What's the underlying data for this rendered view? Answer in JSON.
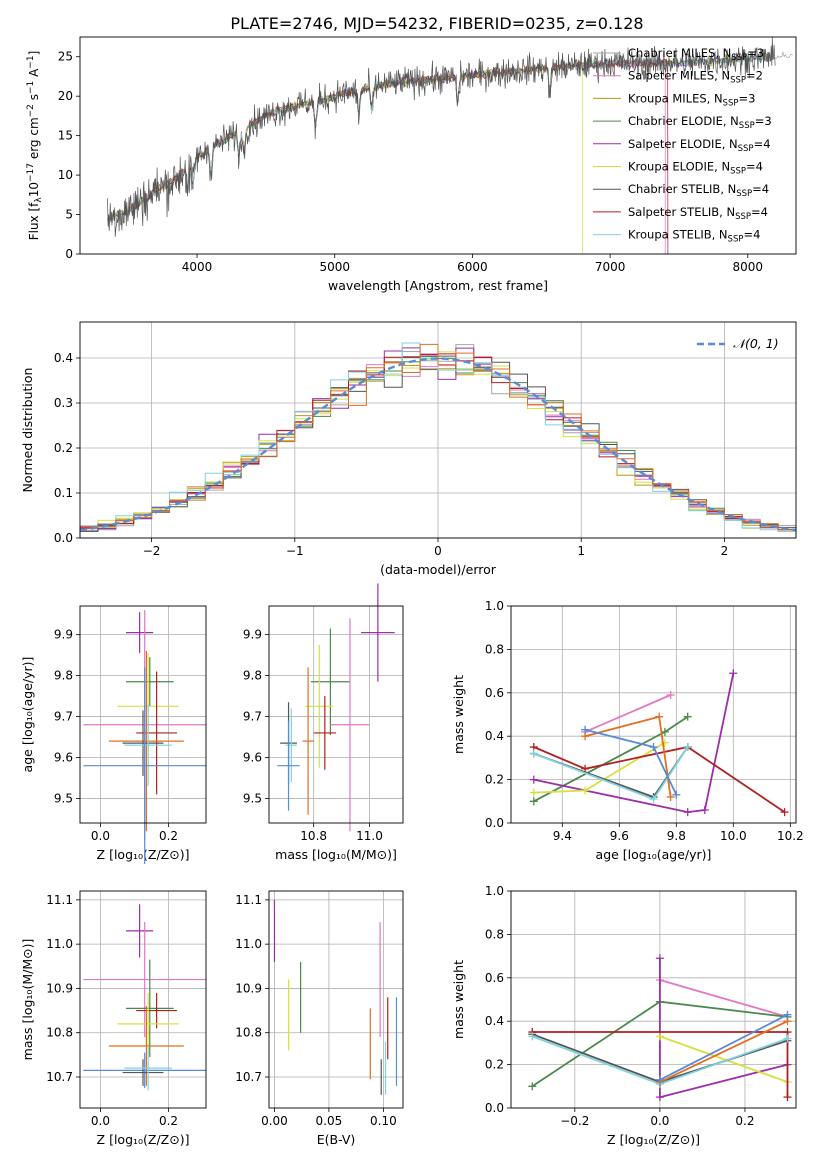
{
  "figure": {
    "title": "PLATE=2746, MJD=54232, FIBERID=0235, z=0.128"
  },
  "colors": {
    "series": [
      "#a6a6a6",
      "#e377c2",
      "#bc9b10",
      "#4a8a4a",
      "#9b2fa8",
      "#d8e040",
      "#555555",
      "#b21f1f",
      "#7fd3e0"
    ],
    "normal_curve": "#5b8ad6",
    "blue_ssp": "#5b8ad6",
    "orange_ssp": "#e07020",
    "grid": "#b0b0b0"
  },
  "legend_entries": [
    {
      "main": "Chabrier MILES, N",
      "sub": "SSP",
      "tail": "=3"
    },
    {
      "main": "Salpeter MILES, N",
      "sub": "SSP",
      "tail": "=2"
    },
    {
      "main": "Kroupa MILES, N",
      "sub": "SSP",
      "tail": "=3"
    },
    {
      "main": "Chabrier ELODIE, N",
      "sub": "SSP",
      "tail": "=3"
    },
    {
      "main": "Salpeter ELODIE, N",
      "sub": "SSP",
      "tail": "=4"
    },
    {
      "main": "Kroupa ELODIE, N",
      "sub": "SSP",
      "tail": "=4"
    },
    {
      "main": "Chabrier STELIB, N",
      "sub": "SSP",
      "tail": "=4"
    },
    {
      "main": "Salpeter STELIB, N",
      "sub": "SSP",
      "tail": "=4"
    },
    {
      "main": "Kroupa STELIB, N",
      "sub": "SSP",
      "tail": "=4"
    }
  ],
  "chart_data": [
    {
      "id": "spectrum",
      "type": "line",
      "title": "PLATE=2746, MJD=54232, FIBERID=0235, z=0.128",
      "xlabel": "wavelength [Angstrom, rest frame]",
      "ylabel_parts": [
        "Flux [f",
        "λ",
        "10",
        "−17",
        " erg cm",
        "−2",
        " s",
        "−1",
        " A",
        "−1",
        "]"
      ],
      "xlim": [
        3150,
        8350
      ],
      "ylim": [
        0,
        27.5
      ],
      "xticks": [
        4000,
        5000,
        6000,
        7000,
        8000
      ],
      "yticks": [
        0,
        5,
        10,
        15,
        20,
        25
      ],
      "grid": false,
      "legend_position": "upper-right",
      "continuum": [
        [
          3350,
          4.5
        ],
        [
          3500,
          5.5
        ],
        [
          3700,
          8.0
        ],
        [
          3850,
          9.5
        ],
        [
          3950,
          11.5
        ],
        [
          4100,
          13.5
        ],
        [
          4300,
          15.5
        ],
        [
          4500,
          17.5
        ],
        [
          4700,
          18.8
        ],
        [
          4900,
          19.5
        ],
        [
          5100,
          20.5
        ],
        [
          5300,
          21.3
        ],
        [
          5500,
          21.8
        ],
        [
          5800,
          22.3
        ],
        [
          6100,
          22.8
        ],
        [
          6500,
          23.5
        ],
        [
          7000,
          24.2
        ],
        [
          7500,
          24.2
        ],
        [
          8000,
          24.8
        ],
        [
          8200,
          25.0
        ]
      ],
      "edge_dropouts": [
        {
          "series": 5,
          "x": 6800
        },
        {
          "series": 7,
          "x": 7420
        },
        {
          "series": 1,
          "x": 7400
        }
      ]
    },
    {
      "id": "residuals",
      "type": "histogram",
      "xlabel": "(data-model)/error",
      "ylabel": "Normed distribution",
      "xlim": [
        -2.5,
        2.5
      ],
      "ylim": [
        0,
        0.48
      ],
      "xticks": [
        -2,
        -1,
        0,
        1,
        2
      ],
      "yticks": [
        0.0,
        0.1,
        0.2,
        0.3,
        0.4
      ],
      "grid": true,
      "legend_entry": "𝒩(0, 1)",
      "legend_position": "upper-right",
      "bin_width": 0.125
    },
    {
      "id": "z-vs-age",
      "type": "errorbar",
      "xlabel": "Z [log₁₀(Z/Z⊙)]",
      "ylabel": "age  [log₁₀(age/yr)]",
      "xlim": [
        -0.06,
        0.31
      ],
      "ylim": [
        9.44,
        9.97
      ],
      "xticks": [
        0.0,
        0.2
      ],
      "yticks": [
        9.5,
        9.6,
        9.7,
        9.8,
        9.9
      ],
      "grid": true,
      "points": [
        {
          "series": 4,
          "x": 0.115,
          "xerr": 0.04,
          "y": 9.905,
          "yerr": 0.05
        },
        {
          "series": 3,
          "x": 0.145,
          "xerr": 0.07,
          "y": 9.785,
          "yerr": 0.06
        },
        {
          "series": 5,
          "x": 0.14,
          "xerr": 0.09,
          "y": 9.725,
          "yerr": 0.13
        },
        {
          "series": 1,
          "x": 0.13,
          "xerr": 0.18,
          "y": 9.68,
          "yerr": 0.28
        },
        {
          "series": 7,
          "x": 0.165,
          "xerr": 0.06,
          "y": 9.66,
          "yerr": 0.15
        },
        {
          "series": 9,
          "x": 0.135,
          "xerr": 0.11,
          "y": 9.64,
          "yerr": 0.22
        },
        {
          "series": 6,
          "x": 0.125,
          "xerr": 0.06,
          "y": 9.635,
          "yerr": 0.08
        },
        {
          "series": 8,
          "x": 0.14,
          "xerr": 0.07,
          "y": 9.63,
          "yerr": 0.1
        },
        {
          "series": 10,
          "x": 0.13,
          "xerr": 0.18,
          "y": 9.58,
          "yerr": 0.24
        }
      ]
    },
    {
      "id": "mass-vs-age",
      "type": "errorbar",
      "xlabel": "mass [log₁₀(M/M⊙)]",
      "xlim": [
        10.64,
        11.12
      ],
      "ylim": [
        9.44,
        9.97
      ],
      "xticks": [
        10.8,
        11.0
      ],
      "yticks": [
        9.5,
        9.6,
        9.7,
        9.8,
        9.9
      ],
      "grid": true,
      "points": [
        {
          "series": 4,
          "x": 11.03,
          "xerr": 0.06,
          "y": 9.905,
          "yerr": 0.12
        },
        {
          "series": 3,
          "x": 10.86,
          "xerr": 0.07,
          "y": 9.785,
          "yerr": 0.13
        },
        {
          "series": 5,
          "x": 10.82,
          "xerr": 0.05,
          "y": 9.725,
          "yerr": 0.15
        },
        {
          "series": 1,
          "x": 10.93,
          "xerr": 0.07,
          "y": 9.68,
          "yerr": 0.26
        },
        {
          "series": 7,
          "x": 10.84,
          "xerr": 0.04,
          "y": 9.66,
          "yerr": 0.09
        },
        {
          "series": 9,
          "x": 10.78,
          "xerr": 0.02,
          "y": 9.64,
          "yerr": 0.18
        },
        {
          "series": 6,
          "x": 10.71,
          "xerr": 0.03,
          "y": 9.635,
          "yerr": 0.1
        },
        {
          "series": 8,
          "x": 10.72,
          "xerr": 0.02,
          "y": 9.63,
          "yerr": 0.09
        },
        {
          "series": 10,
          "x": 10.71,
          "xerr": 0.04,
          "y": 9.58,
          "yerr": 0.11
        }
      ]
    },
    {
      "id": "age-vs-weight",
      "type": "line",
      "xlabel": "age  [log₁₀(age/yr)]",
      "ylabel": "mass weight",
      "xlim": [
        9.22,
        10.22
      ],
      "ylim": [
        0,
        1.0
      ],
      "xticks": [
        9.4,
        9.6,
        9.8,
        10.0,
        10.2
      ],
      "yticks": [
        0.0,
        0.2,
        0.4,
        0.6,
        0.8,
        1.0
      ],
      "grid": true,
      "series": [
        {
          "series": 1,
          "points": [
            [
              9.48,
              0.42
            ],
            [
              9.78,
              0.59
            ]
          ]
        },
        {
          "series": 3,
          "points": [
            [
              9.3,
              0.1
            ],
            [
              9.76,
              0.42
            ],
            [
              9.84,
              0.49
            ]
          ]
        },
        {
          "series": 4,
          "points": [
            [
              9.3,
              0.2
            ],
            [
              9.84,
              0.05
            ],
            [
              9.9,
              0.06
            ],
            [
              10.0,
              0.69
            ]
          ]
        },
        {
          "series": 5,
          "points": [
            [
              9.3,
              0.14
            ],
            [
              9.48,
              0.15
            ],
            [
              9.76,
              0.37
            ]
          ]
        },
        {
          "series": 6,
          "points": [
            [
              9.3,
              0.32
            ],
            [
              9.72,
              0.12
            ],
            [
              9.84,
              0.35
            ]
          ]
        },
        {
          "series": 7,
          "points": [
            [
              9.3,
              0.35
            ],
            [
              9.48,
              0.25
            ],
            [
              9.84,
              0.35
            ],
            [
              10.18,
              0.05
            ]
          ]
        },
        {
          "series": 8,
          "points": [
            [
              9.3,
              0.32
            ],
            [
              9.72,
              0.11
            ],
            [
              9.84,
              0.35
            ]
          ]
        },
        {
          "series": 9,
          "points": [
            [
              9.48,
              0.4
            ],
            [
              9.74,
              0.49
            ],
            [
              9.78,
              0.12
            ]
          ]
        },
        {
          "series": 10,
          "points": [
            [
              9.48,
              0.43
            ],
            [
              9.72,
              0.35
            ],
            [
              9.8,
              0.13
            ]
          ]
        }
      ]
    },
    {
      "id": "z-vs-mass",
      "type": "errorbar",
      "xlabel": "Z [log₁₀(Z/Z⊙)]",
      "ylabel": "mass [log₁₀(M/M⊙)]",
      "xlim": [
        -0.06,
        0.31
      ],
      "ylim": [
        10.63,
        11.12
      ],
      "xticks": [
        0.0,
        0.2
      ],
      "yticks": [
        10.7,
        10.8,
        10.9,
        11.0,
        11.1
      ],
      "grid": true,
      "points": [
        {
          "series": 4,
          "x": 0.115,
          "xerr": 0.04,
          "y": 11.03,
          "yerr": 0.06
        },
        {
          "series": 1,
          "x": 0.13,
          "xerr": 0.18,
          "y": 10.92,
          "yerr": 0.13
        },
        {
          "series": 3,
          "x": 0.145,
          "xerr": 0.07,
          "y": 10.855,
          "yerr": 0.11
        },
        {
          "series": 7,
          "x": 0.165,
          "xerr": 0.06,
          "y": 10.85,
          "yerr": 0.04
        },
        {
          "series": 5,
          "x": 0.14,
          "xerr": 0.09,
          "y": 10.82,
          "yerr": 0.07
        },
        {
          "series": 9,
          "x": 0.135,
          "xerr": 0.11,
          "y": 10.77,
          "yerr": 0.09
        },
        {
          "series": 10,
          "x": 0.13,
          "xerr": 0.18,
          "y": 10.715,
          "yerr": 0.04
        },
        {
          "series": 6,
          "x": 0.125,
          "xerr": 0.06,
          "y": 10.71,
          "yerr": 0.03
        },
        {
          "series": 8,
          "x": 0.14,
          "xerr": 0.07,
          "y": 10.72,
          "yerr": 0.05
        }
      ]
    },
    {
      "id": "ebv-vs-mass",
      "type": "errorbar",
      "xlabel": "E(B-V)",
      "xlim": [
        -0.005,
        0.118
      ],
      "ylim": [
        10.63,
        11.12
      ],
      "xticks": [
        0.0,
        0.05,
        0.1
      ],
      "yticks": [
        10.7,
        10.8,
        10.9,
        11.0,
        11.1
      ],
      "grid": true,
      "points": [
        {
          "series": 4,
          "x": 0.0,
          "xerr": 0.0,
          "y": 11.03,
          "yerr": 0.07
        },
        {
          "series": 5,
          "x": 0.013,
          "xerr": 0.0,
          "y": 10.84,
          "yerr": 0.08
        },
        {
          "series": 3,
          "x": 0.024,
          "xerr": 0.0,
          "y": 10.88,
          "yerr": 0.08
        },
        {
          "series": 9,
          "x": 0.088,
          "xerr": 0.0,
          "y": 10.775,
          "yerr": 0.08
        },
        {
          "series": 1,
          "x": 0.097,
          "xerr": 0.0,
          "y": 10.92,
          "yerr": 0.13
        },
        {
          "series": 6,
          "x": 0.098,
          "xerr": 0.0,
          "y": 10.7,
          "yerr": 0.04
        },
        {
          "series": 7,
          "x": 0.104,
          "xerr": 0.0,
          "y": 10.81,
          "yerr": 0.07
        },
        {
          "series": 8,
          "x": 0.102,
          "xerr": 0.0,
          "y": 10.72,
          "yerr": 0.06
        },
        {
          "series": 10,
          "x": 0.112,
          "xerr": 0.0,
          "y": 10.78,
          "yerr": 0.1
        }
      ]
    },
    {
      "id": "zbin-vs-weight",
      "type": "line",
      "xlabel": "Z [log₁₀(Z/Z⊙)]",
      "ylabel": "mass weight",
      "xlim": [
        -0.35,
        0.32
      ],
      "ylim": [
        0,
        1.0
      ],
      "xticks": [
        -0.2,
        0.0,
        0.2
      ],
      "yticks": [
        0.0,
        0.2,
        0.4,
        0.6,
        0.8,
        1.0
      ],
      "grid": true,
      "series": [
        {
          "series": 1,
          "points": [
            [
              0.0,
              0.59
            ],
            [
              0.3,
              0.42
            ]
          ]
        },
        {
          "series": 3,
          "points": [
            [
              -0.3,
              0.1
            ],
            [
              0.0,
              0.49
            ],
            [
              0.3,
              0.42
            ]
          ]
        },
        {
          "series": 4,
          "points": [
            [
              0.0,
              0.69
            ],
            [
              0.0,
              0.05
            ],
            [
              0.3,
              0.2
            ]
          ]
        },
        {
          "series": 5,
          "points": [
            [
              0.0,
              0.33
            ],
            [
              0.3,
              0.12
            ]
          ]
        },
        {
          "series": 6,
          "points": [
            [
              -0.3,
              0.34
            ],
            [
              0.0,
              0.12
            ],
            [
              0.3,
              0.31
            ]
          ]
        },
        {
          "series": 7,
          "points": [
            [
              -0.3,
              0.35
            ],
            [
              0.3,
              0.35
            ],
            [
              0.3,
              0.05
            ]
          ]
        },
        {
          "series": 8,
          "points": [
            [
              -0.3,
              0.33
            ],
            [
              0.0,
              0.11
            ],
            [
              0.3,
              0.32
            ]
          ]
        },
        {
          "series": 9,
          "points": [
            [
              0.0,
              0.12
            ],
            [
              0.3,
              0.4
            ]
          ]
        },
        {
          "series": 10,
          "points": [
            [
              0.0,
              0.13
            ],
            [
              0.3,
              0.43
            ]
          ]
        }
      ]
    }
  ]
}
